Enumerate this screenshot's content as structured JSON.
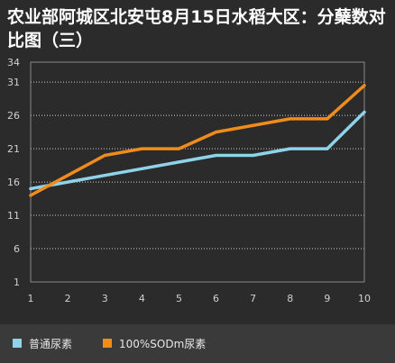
{
  "chart_data": {
    "type": "line",
    "title": "农业部阿城区北安屯8月15日水稻大区：分蘖数对比图（三）",
    "x": [
      1,
      2,
      3,
      4,
      5,
      6,
      7,
      8,
      9,
      10
    ],
    "y_ticks": [
      1,
      6,
      11,
      16,
      21,
      26,
      31,
      34
    ],
    "ylim": [
      1,
      34
    ],
    "xlim": [
      1,
      10
    ],
    "grid": "horizontal-dotted",
    "legend_position": "bottom-left",
    "series": [
      {
        "name": "普通尿素",
        "color": "#8fd3ea",
        "values": [
          15,
          16,
          17,
          18,
          19,
          20,
          20,
          21,
          21,
          26.5
        ]
      },
      {
        "name": "100%SODm尿素",
        "color": "#ef8c1c",
        "values": [
          14,
          17,
          20,
          21,
          21,
          23.5,
          24.5,
          25.5,
          25.5,
          30.5
        ]
      }
    ]
  }
}
